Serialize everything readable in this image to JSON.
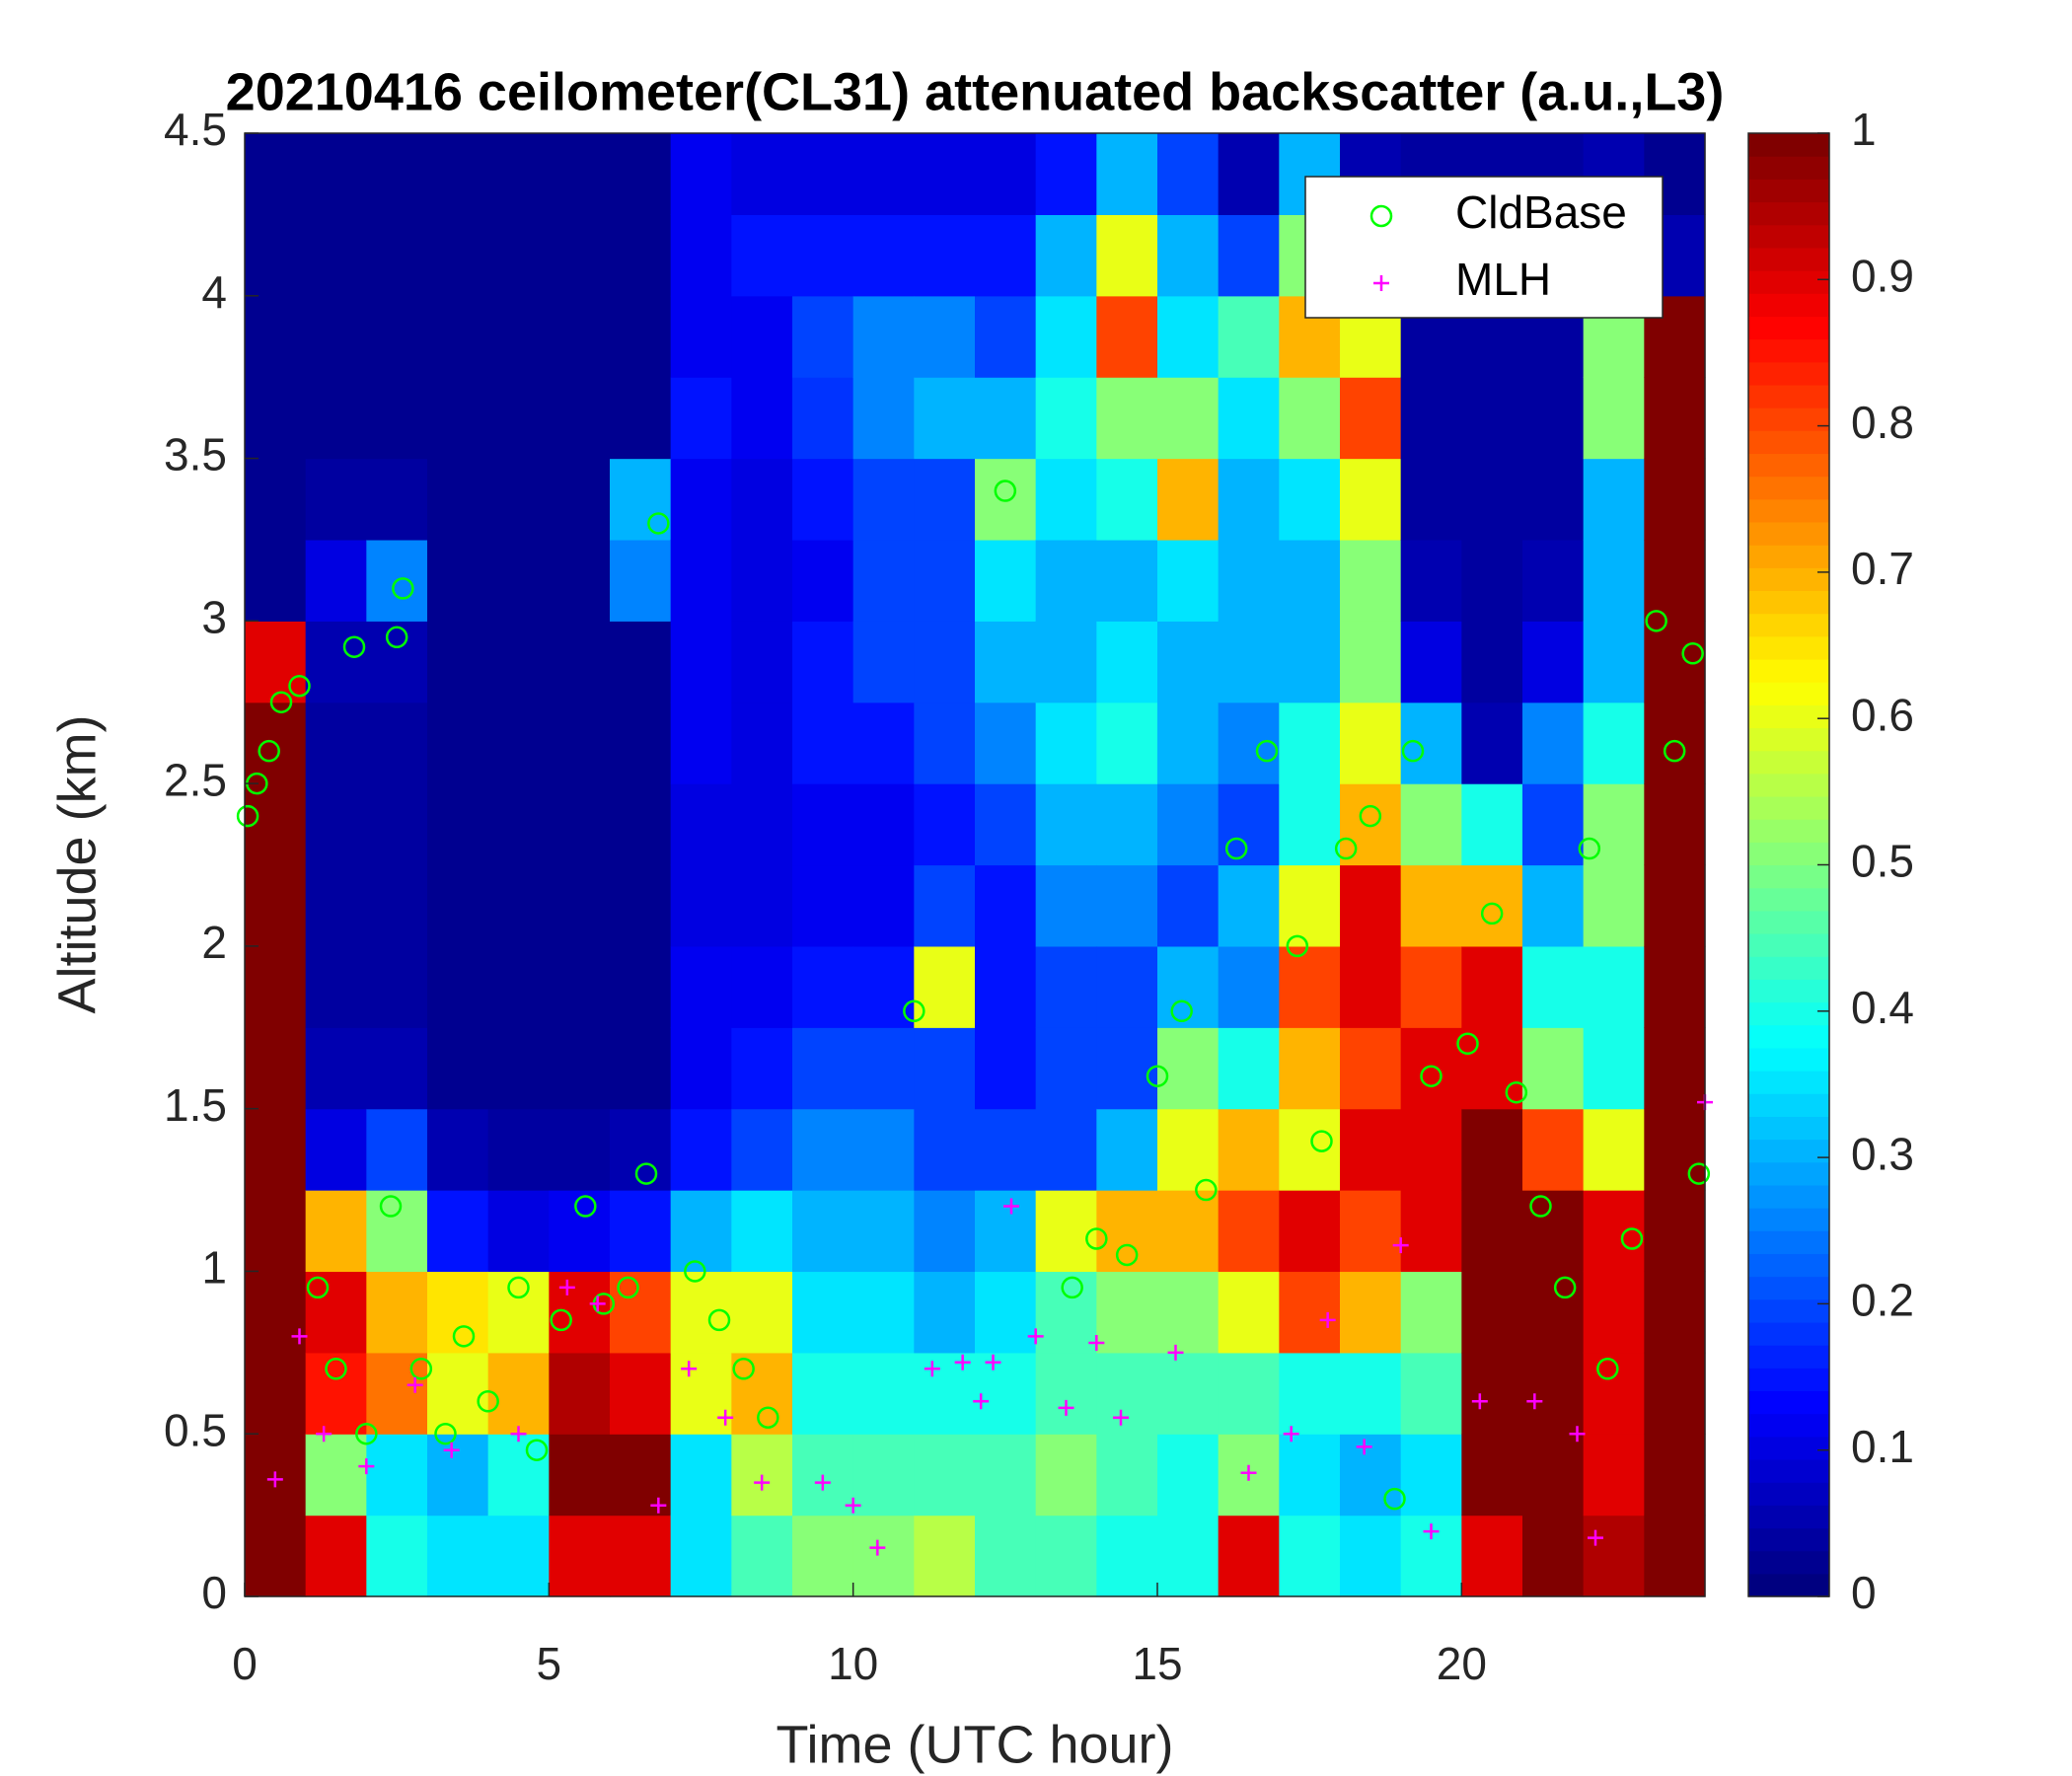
{
  "chart_data": {
    "type": "heatmap",
    "title": "20210416 ceilometer(CL31) attenuated backscatter (a.u.,L3)",
    "xlabel": "Time (UTC hour)",
    "ylabel": "Altitude (km)",
    "xlim": [
      0,
      24
    ],
    "xticks": [
      0,
      5,
      10,
      15,
      20
    ],
    "ylim": [
      0,
      4.5
    ],
    "yticks": [
      0,
      0.5,
      1,
      1.5,
      2,
      2.5,
      3,
      3.5,
      4,
      4.5
    ],
    "clim": [
      0,
      1
    ],
    "cticks": [
      0,
      0.1,
      0.2,
      0.3,
      0.4,
      0.5,
      0.6,
      0.7,
      0.8,
      0.9,
      1
    ],
    "colormap": "jet",
    "legend": "upper right",
    "xbins": [
      0,
      1,
      2,
      3,
      4,
      5,
      6,
      7,
      8,
      9,
      10,
      11,
      12,
      13,
      14,
      15,
      16,
      17,
      18,
      19,
      20,
      21,
      22,
      23,
      24
    ],
    "ybins": [
      0,
      0.25,
      0.5,
      0.75,
      1,
      1.25,
      1.5,
      1.75,
      2,
      2.25,
      2.5,
      2.75,
      3,
      3.25,
      3.5,
      3.75,
      4,
      4.25,
      4.5
    ],
    "z": [
      [
        1,
        1,
        1,
        1,
        1,
        1,
        1,
        1,
        1,
        1,
        1,
        0.9,
        0.03,
        0.02,
        0.02,
        0.02,
        0.02,
        0.02
      ],
      [
        0.9,
        0.5,
        0.85,
        0.9,
        0.7,
        0.1,
        0.05,
        0.04,
        0.04,
        0.04,
        0.04,
        0.05,
        0.1,
        0.04,
        0.03,
        0.03,
        0.03,
        0.03
      ],
      [
        0.4,
        0.35,
        0.75,
        0.7,
        0.5,
        0.2,
        0.06,
        0.04,
        0.04,
        0.04,
        0.04,
        0.05,
        0.25,
        0.04,
        0.03,
        0.03,
        0.03,
        0.03
      ],
      [
        0.35,
        0.3,
        0.6,
        0.65,
        0.15,
        0.05,
        0.03,
        0.03,
        0.03,
        0.03,
        0.03,
        0.03,
        0.03,
        0.03,
        0.03,
        0.03,
        0.03,
        0.03
      ],
      [
        0.35,
        0.4,
        0.7,
        0.6,
        0.1,
        0.04,
        0.03,
        0.03,
        0.03,
        0.03,
        0.03,
        0.03,
        0.03,
        0.03,
        0.03,
        0.03,
        0.03,
        0.03
      ],
      [
        0.9,
        1,
        0.95,
        0.9,
        0.12,
        0.04,
        0.03,
        0.03,
        0.03,
        0.03,
        0.03,
        0.03,
        0.03,
        0.03,
        0.03,
        0.03,
        0.03,
        0.03
      ],
      [
        0.9,
        1,
        0.9,
        0.8,
        0.15,
        0.05,
        0.03,
        0.03,
        0.03,
        0.03,
        0.03,
        0.03,
        0.25,
        0.3,
        0.03,
        0.03,
        0.03,
        0.03
      ],
      [
        0.35,
        0.35,
        0.6,
        0.6,
        0.3,
        0.15,
        0.12,
        0.12,
        0.1,
        0.1,
        0.12,
        0.12,
        0.12,
        0.12,
        0.15,
        0.12,
        0.12,
        0.12
      ],
      [
        0.45,
        0.55,
        0.7,
        0.6,
        0.35,
        0.2,
        0.15,
        0.12,
        0.1,
        0.1,
        0.1,
        0.1,
        0.1,
        0.1,
        0.12,
        0.12,
        0.15,
        0.1
      ],
      [
        0.5,
        0.45,
        0.4,
        0.35,
        0.3,
        0.25,
        0.2,
        0.15,
        0.12,
        0.12,
        0.15,
        0.15,
        0.12,
        0.15,
        0.18,
        0.2,
        0.15,
        0.1
      ],
      [
        0.5,
        0.45,
        0.4,
        0.35,
        0.3,
        0.25,
        0.2,
        0.15,
        0.12,
        0.12,
        0.15,
        0.2,
        0.2,
        0.2,
        0.25,
        0.25,
        0.15,
        0.1
      ],
      [
        0.55,
        0.45,
        0.4,
        0.3,
        0.25,
        0.2,
        0.2,
        0.6,
        0.2,
        0.15,
        0.2,
        0.2,
        0.2,
        0.2,
        0.3,
        0.25,
        0.15,
        0.1
      ],
      [
        0.45,
        0.45,
        0.4,
        0.35,
        0.3,
        0.2,
        0.15,
        0.15,
        0.15,
        0.2,
        0.25,
        0.3,
        0.35,
        0.5,
        0.3,
        0.2,
        0.15,
        0.1
      ],
      [
        0.45,
        0.5,
        0.45,
        0.45,
        0.6,
        0.2,
        0.2,
        0.2,
        0.25,
        0.3,
        0.35,
        0.3,
        0.3,
        0.35,
        0.4,
        0.35,
        0.3,
        0.15
      ],
      [
        0.4,
        0.45,
        0.45,
        0.5,
        0.7,
        0.3,
        0.2,
        0.2,
        0.25,
        0.3,
        0.4,
        0.35,
        0.3,
        0.4,
        0.5,
        0.8,
        0.6,
        0.3
      ],
      [
        0.4,
        0.4,
        0.45,
        0.5,
        0.7,
        0.6,
        0.5,
        0.3,
        0.2,
        0.25,
        0.3,
        0.3,
        0.35,
        0.7,
        0.5,
        0.35,
        0.3,
        0.2
      ],
      [
        0.9,
        0.5,
        0.45,
        0.6,
        0.8,
        0.7,
        0.4,
        0.25,
        0.3,
        0.2,
        0.25,
        0.3,
        0.3,
        0.3,
        0.35,
        0.45,
        0.2,
        0.05
      ],
      [
        0.4,
        0.35,
        0.4,
        0.8,
        0.9,
        0.6,
        0.7,
        0.8,
        0.6,
        0.4,
        0.4,
        0.3,
        0.3,
        0.35,
        0.5,
        0.7,
        0.5,
        0.3
      ],
      [
        0.35,
        0.3,
        0.4,
        0.7,
        0.8,
        0.9,
        0.8,
        0.9,
        0.9,
        0.7,
        0.6,
        0.5,
        0.5,
        0.6,
        0.8,
        0.6,
        0.2,
        0.05
      ],
      [
        0.4,
        0.35,
        0.45,
        0.5,
        0.9,
        0.9,
        0.9,
        0.8,
        0.7,
        0.5,
        0.3,
        0.1,
        0.05,
        0.04,
        0.04,
        0.04,
        0.04,
        0.04
      ],
      [
        0.9,
        1,
        1,
        1,
        1,
        1,
        0.9,
        0.9,
        0.7,
        0.4,
        0.05,
        0.04,
        0.04,
        0.04,
        0.04,
        0.04,
        0.04,
        0.04
      ],
      [
        1,
        1,
        1,
        1,
        1,
        0.8,
        0.5,
        0.4,
        0.3,
        0.2,
        0.25,
        0.1,
        0.05,
        0.04,
        0.04,
        0.04,
        0.04,
        0.04
      ],
      [
        0.95,
        0.9,
        0.9,
        0.9,
        0.9,
        0.6,
        0.4,
        0.4,
        0.5,
        0.5,
        0.4,
        0.3,
        0.3,
        0.3,
        0.5,
        0.5,
        0.4,
        0.05
      ],
      [
        1,
        1,
        1,
        1,
        1,
        1,
        1,
        1,
        1,
        1,
        1,
        1,
        1,
        1,
        1,
        1,
        0.05,
        0.03
      ]
    ],
    "series": [
      {
        "name": "CldBase",
        "color": "#00ff00",
        "marker": "o",
        "x": [
          0.05,
          0.2,
          0.4,
          0.6,
          0.9,
          1.2,
          1.5,
          1.8,
          2.0,
          2.4,
          2.5,
          2.6,
          2.9,
          3.3,
          3.6,
          4.0,
          4.5,
          4.8,
          5.2,
          5.6,
          5.9,
          6.3,
          6.6,
          6.8,
          7.4,
          7.8,
          8.2,
          8.6,
          11.0,
          12.5,
          13.6,
          14.0,
          14.5,
          15.0,
          15.4,
          15.8,
          16.3,
          16.8,
          17.3,
          17.7,
          18.1,
          18.5,
          18.9,
          19.2,
          19.5,
          20.1,
          20.5,
          20.9,
          21.3,
          21.7,
          22.1,
          22.4,
          22.8,
          23.2,
          23.5,
          23.8,
          23.9
        ],
        "y": [
          2.4,
          2.5,
          2.6,
          2.75,
          2.8,
          0.95,
          0.7,
          2.92,
          0.5,
          1.2,
          2.95,
          3.1,
          0.7,
          0.5,
          0.8,
          0.6,
          0.95,
          0.45,
          0.85,
          1.2,
          0.9,
          0.95,
          1.3,
          3.3,
          1.0,
          0.85,
          0.7,
          0.55,
          1.8,
          3.4,
          0.95,
          1.1,
          1.05,
          1.6,
          1.8,
          1.25,
          2.3,
          2.6,
          2.0,
          1.4,
          2.3,
          2.4,
          0.3,
          2.6,
          1.6,
          1.7,
          2.1,
          1.55,
          1.2,
          0.95,
          2.3,
          0.7,
          1.1,
          3.0,
          2.6,
          2.9,
          1.3
        ]
      },
      {
        "name": "MLH",
        "color": "#ff00ff",
        "marker": "+",
        "x": [
          0.5,
          0.9,
          1.3,
          2.0,
          2.8,
          3.4,
          4.5,
          5.3,
          5.8,
          6.8,
          7.3,
          7.9,
          8.5,
          9.5,
          10.0,
          10.4,
          11.3,
          11.8,
          12.1,
          12.3,
          12.6,
          13.0,
          13.5,
          14.0,
          14.4,
          15.3,
          16.5,
          17.2,
          17.8,
          18.4,
          19.0,
          19.5,
          20.3,
          21.2,
          21.9,
          22.2,
          24
        ],
        "y": [
          0.36,
          0.8,
          0.5,
          0.4,
          0.65,
          0.45,
          0.5,
          0.95,
          0.9,
          0.28,
          0.7,
          0.55,
          0.35,
          0.35,
          0.28,
          0.15,
          0.7,
          0.72,
          0.6,
          0.72,
          1.2,
          0.8,
          0.58,
          0.78,
          0.55,
          0.75,
          0.38,
          0.5,
          0.85,
          0.46,
          1.08,
          0.2,
          0.6,
          0.6,
          0.5,
          0.18,
          1.52
        ]
      }
    ]
  }
}
